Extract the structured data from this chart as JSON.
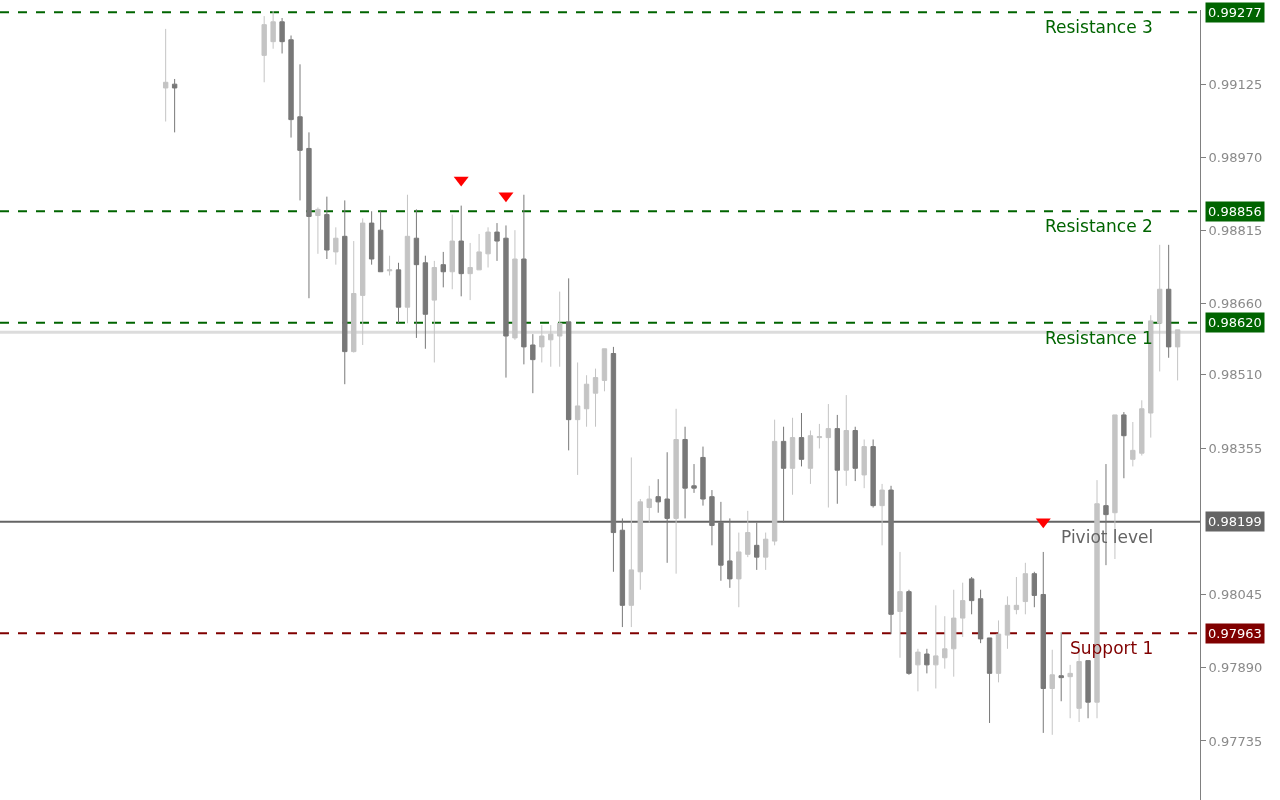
{
  "chart_data": {
    "type": "candlestick",
    "categories": [
      null,
      null,
      null,
      null,
      null,
      null,
      null,
      null,
      null,
      null,
      null,
      null,
      null,
      null,
      null,
      null,
      null,
      null,
      null,
      null,
      null,
      null,
      null,
      null,
      null,
      null,
      null,
      null,
      null,
      null,
      null,
      null,
      null,
      null,
      null,
      null,
      null,
      null,
      null,
      null,
      null,
      null,
      null,
      null,
      null,
      null,
      null,
      null,
      null,
      null,
      null,
      null,
      null,
      null,
      null,
      null,
      null,
      null,
      null,
      null,
      null,
      null,
      null,
      null,
      null,
      null,
      null,
      null,
      null,
      null,
      null,
      null,
      null,
      null,
      null,
      null,
      null,
      null,
      null,
      null,
      null,
      null,
      null,
      null,
      null,
      null,
      null,
      null,
      null,
      null,
      null,
      null,
      null,
      null,
      null,
      null,
      null,
      null,
      null,
      null,
      null,
      null,
      null,
      null,
      null,
      null,
      null,
      null,
      null,
      null,
      null,
      null,
      null,
      null,
      null,
      null,
      null,
      null,
      null,
      null,
      null,
      null,
      null,
      null,
      null,
      null,
      null,
      null,
      null,
      null,
      null,
      null,
      null,
      null
    ],
    "ohlc": [
      null,
      null,
      null,
      null,
      null,
      null,
      null,
      null,
      null,
      null,
      null,
      null,
      null,
      null,
      null,
      null,
      null,
      null,
      [
        0.99117,
        0.99242,
        0.99046,
        0.99129
      ],
      [
        0.99125,
        0.99136,
        0.99023,
        0.99117
      ],
      null,
      null,
      null,
      null,
      null,
      null,
      null,
      null,
      null,
      [
        0.99186,
        0.99269,
        0.99129,
        0.99251
      ],
      [
        0.99215,
        0.9928,
        0.992,
        0.99257
      ],
      [
        0.99257,
        0.99265,
        0.9919,
        0.99215
      ],
      [
        0.99219,
        0.99228,
        0.99012,
        0.9905
      ],
      [
        0.99056,
        0.99167,
        0.98879,
        0.98985
      ],
      [
        0.98989,
        0.99023,
        0.98672,
        0.98845
      ],
      [
        0.98847,
        0.98864,
        0.98766,
        0.9886
      ],
      [
        0.98849,
        0.98887,
        0.98755,
        0.98774
      ],
      [
        0.9877,
        0.98822,
        0.98743,
        0.98799
      ],
      [
        0.98803,
        0.98879,
        0.9849,
        0.98559
      ],
      [
        0.98559,
        0.98793,
        0.98557,
        0.98682
      ],
      [
        0.98678,
        0.98841,
        0.98573,
        0.98831
      ],
      [
        0.98831,
        0.98856,
        0.98743,
        0.98755
      ],
      [
        0.98816,
        0.98856,
        0.98728,
        0.98728
      ],
      [
        0.9873,
        0.98762,
        0.9872,
        0.98732
      ],
      [
        0.98732,
        0.98747,
        0.98619,
        0.98653
      ],
      [
        0.98653,
        0.98891,
        0.98619,
        0.98803
      ],
      [
        0.98799,
        0.9886,
        0.98588,
        0.98743
      ],
      [
        0.98747,
        0.98762,
        0.98565,
        0.98638
      ],
      [
        0.98668,
        0.98751,
        0.98536,
        0.98737
      ],
      [
        0.98743,
        0.9877,
        0.98695,
        0.98728
      ],
      [
        0.98728,
        0.98849,
        0.98691,
        0.98793
      ],
      [
        0.98793,
        0.98868,
        0.98676,
        0.98724
      ],
      [
        0.98724,
        0.98789,
        0.98668,
        0.98737
      ],
      [
        0.98732,
        0.98808,
        0.98732,
        0.9877
      ],
      [
        0.98766,
        0.98822,
        0.98737,
        0.98812
      ],
      [
        0.98812,
        0.98831,
        0.98751,
        0.98793
      ],
      [
        0.98799,
        0.98826,
        0.98504,
        0.98592
      ],
      [
        0.98588,
        0.98816,
        0.98584,
        0.98755
      ],
      [
        0.98755,
        0.98891,
        0.98532,
        0.98569
      ],
      [
        0.98573,
        0.98596,
        0.98471,
        0.98542
      ],
      [
        0.98569,
        0.98615,
        0.98536,
        0.98592
      ],
      [
        0.98584,
        0.98615,
        0.98527,
        0.98596
      ],
      [
        0.98592,
        0.98686,
        0.98527,
        0.98619
      ],
      [
        0.98622,
        0.98714,
        0.9835,
        0.98415
      ],
      [
        0.98415,
        0.98536,
        0.98298,
        0.98444
      ],
      [
        0.98438,
        0.98509,
        0.984,
        0.9849
      ],
      [
        0.98471,
        0.98523,
        0.984,
        0.98504
      ],
      [
        0.98498,
        0.98565,
        0.98475,
        0.98565
      ],
      [
        0.98555,
        0.98569,
        0.98093,
        0.98176
      ],
      [
        0.98181,
        0.98206,
        0.97976,
        0.98022
      ],
      [
        0.98022,
        0.98335,
        0.97976,
        0.98097
      ],
      [
        0.98093,
        0.98247,
        0.98055,
        0.98241
      ],
      [
        0.98229,
        0.98275,
        0.98197,
        0.98247
      ],
      [
        0.98252,
        0.98289,
        0.98218,
        0.98241
      ],
      [
        0.98247,
        0.98346,
        0.98112,
        0.98206
      ],
      [
        0.98206,
        0.98438,
        0.98089,
        0.98373
      ],
      [
        0.98373,
        0.984,
        0.98206,
        0.9827
      ],
      [
        0.98275,
        0.98321,
        0.9826,
        0.9827
      ],
      [
        0.98335,
        0.98358,
        0.98233,
        0.98247
      ],
      [
        0.98252,
        0.98266,
        0.98149,
        0.98191
      ],
      [
        0.98197,
        0.98241,
        0.98074,
        0.98107
      ],
      [
        0.98116,
        0.98206,
        0.98059,
        0.98078
      ],
      [
        0.98078,
        0.98176,
        0.98018,
        0.98135
      ],
      [
        0.9813,
        0.98222,
        0.98124,
        0.98176
      ],
      [
        0.98149,
        0.98197,
        0.98097,
        0.98124
      ],
      [
        0.98124,
        0.98176,
        0.98097,
        0.98162
      ],
      [
        0.98158,
        0.98415,
        0.98149,
        0.98369
      ],
      [
        0.98369,
        0.984,
        0.98197,
        0.98312
      ],
      [
        0.98312,
        0.98419,
        0.98256,
        0.98377
      ],
      [
        0.98377,
        0.98429,
        0.98316,
        0.98331
      ],
      [
        0.98312,
        0.98392,
        0.98279,
        0.98381
      ],
      [
        0.98377,
        0.98406,
        0.98354,
        0.98379
      ],
      [
        0.98377,
        0.98448,
        0.98229,
        0.98396
      ],
      [
        0.98396,
        0.98425,
        0.98237,
        0.98308
      ],
      [
        0.98308,
        0.98467,
        0.98275,
        0.98392
      ],
      [
        0.98392,
        0.984,
        0.98285,
        0.98312
      ],
      [
        0.98298,
        0.98373,
        0.9827,
        0.98358
      ],
      [
        0.98358,
        0.98373,
        0.98229,
        0.98233
      ],
      [
        0.98233,
        0.98279,
        0.98149,
        0.98266
      ],
      [
        0.98266,
        0.98275,
        0.97961,
        0.98003
      ],
      [
        0.98009,
        0.98135,
        0.97911,
        0.98051
      ],
      [
        0.98051,
        0.98055,
        0.97875,
        0.97878
      ],
      [
        0.97896,
        0.9793,
        0.9784,
        0.97923
      ],
      [
        0.97919,
        0.9793,
        0.97878,
        0.97896
      ],
      [
        0.97896,
        0.98022,
        0.97846,
        0.97915
      ],
      [
        0.97911,
        0.97999,
        0.97888,
        0.9793
      ],
      [
        0.9793,
        0.98055,
        0.97871,
        0.97995
      ],
      [
        0.97995,
        0.9807,
        0.97955,
        0.98032
      ],
      [
        0.98078,
        0.98082,
        0.98003,
        0.98032
      ],
      [
        0.98036,
        0.98055,
        0.97942,
        0.97951
      ],
      [
        0.97953,
        0.97953,
        0.97773,
        0.97878
      ],
      [
        0.97878,
        0.9799,
        0.97859,
        0.97961
      ],
      [
        0.97959,
        0.98041,
        0.9793,
        0.98022
      ],
      [
        0.98013,
        0.98082,
        0.98003,
        0.98022
      ],
      [
        0.9803,
        0.98112,
        0.98003,
        0.98089
      ],
      [
        0.98089,
        0.98093,
        0.98018,
        0.98043
      ],
      [
        0.98045,
        0.98135,
        0.97752,
        0.97846
      ],
      [
        0.97846,
        0.97928,
        0.97748,
        0.97875
      ],
      [
        0.97873,
        0.97965,
        0.97819,
        0.97869
      ],
      [
        0.97871,
        0.97896,
        0.97783,
        0.97878
      ],
      [
        0.97804,
        0.9794,
        0.97775,
        0.97903
      ],
      [
        0.97905,
        0.97905,
        0.97783,
        0.97817
      ],
      [
        0.97817,
        0.98287,
        0.97783,
        0.98237
      ],
      [
        0.98233,
        0.98321,
        0.98107,
        0.98214
      ],
      [
        0.98218,
        0.98425,
        0.9812,
        0.98425
      ],
      [
        0.98425,
        0.98431,
        0.98291,
        0.98381
      ],
      [
        0.98331,
        0.9841,
        0.98316,
        0.9835
      ],
      [
        0.98344,
        0.98456,
        0.98339,
        0.98438
      ],
      [
        0.98429,
        0.98636,
        0.98377,
        0.98624
      ],
      [
        0.98619,
        0.98785,
        0.98517,
        0.98691
      ],
      [
        0.98691,
        0.98785,
        0.98546,
        0.98569
      ],
      [
        0.98569,
        0.98605,
        0.98498,
        0.98605
      ],
      null,
      null
    ],
    "colors": [
      null,
      null,
      null,
      null,
      null,
      null,
      null,
      null,
      null,
      null,
      null,
      null,
      null,
      null,
      null,
      null,
      null,
      null,
      "#c4c4c4",
      "#787878",
      null,
      null,
      null,
      null,
      null,
      null,
      null,
      null,
      null,
      "#c4c4c4",
      "#c4c4c4",
      "#787878",
      "#787878",
      "#787878",
      "#787878",
      "#c4c4c4",
      "#787878",
      "#c4c4c4",
      "#787878",
      "#c4c4c4",
      "#c4c4c4",
      "#787878",
      "#787878",
      "#c4c4c4",
      "#787878",
      "#c4c4c4",
      "#787878",
      "#787878",
      "#c4c4c4",
      "#787878",
      "#c4c4c4",
      "#787878",
      "#c4c4c4",
      "#c4c4c4",
      "#c4c4c4",
      "#787878",
      "#787878",
      "#c4c4c4",
      "#787878",
      "#787878",
      "#c4c4c4",
      "#c4c4c4",
      "#c4c4c4",
      "#787878",
      "#c4c4c4",
      "#c4c4c4",
      "#c4c4c4",
      "#c4c4c4",
      "#787878",
      "#787878",
      "#c4c4c4",
      "#c4c4c4",
      "#c4c4c4",
      "#787878",
      "#787878",
      "#c4c4c4",
      "#787878",
      "#787878",
      "#787878",
      "#787878",
      "#787878",
      "#787878",
      "#c4c4c4",
      "#c4c4c4",
      "#787878",
      "#c4c4c4",
      "#c4c4c4",
      "#787878",
      "#c4c4c4",
      "#787878",
      "#c4c4c4",
      "#c4c4c4",
      "#c4c4c4",
      "#787878",
      "#c4c4c4",
      "#787878",
      "#c4c4c4",
      "#787878",
      "#c4c4c4",
      "#787878",
      "#c4c4c4",
      "#787878",
      "#c4c4c4",
      "#787878",
      "#c4c4c4",
      "#c4c4c4",
      "#c4c4c4",
      "#c4c4c4",
      "#787878",
      "#787878",
      "#787878",
      "#c4c4c4",
      "#c4c4c4",
      "#c4c4c4",
      "#c4c4c4",
      "#787878",
      "#787878",
      "#c4c4c4",
      "#787878",
      "#c4c4c4",
      "#c4c4c4",
      "#787878",
      "#c4c4c4",
      "#787878",
      "#c4c4c4",
      "#787878",
      "#c4c4c4",
      "#c4c4c4",
      "#c4c4c4",
      "#c4c4c4",
      "#787878",
      "#c4c4c4",
      null,
      null
    ],
    "series": [
      {
        "type": "scatter",
        "color": "#ff0000",
        "marker": "triangle",
        "values": [
          null,
          null,
          null,
          null,
          null,
          null,
          null,
          null,
          null,
          null,
          null,
          null,
          null,
          null,
          null,
          null,
          null,
          null,
          null,
          null,
          null,
          null,
          null,
          null,
          null,
          null,
          null,
          null,
          null,
          null,
          null,
          null,
          null,
          null,
          null,
          null,
          null,
          null,
          null,
          null,
          null,
          null,
          null,
          null,
          null,
          null,
          null,
          null,
          null,
          null,
          null,
          0.98922,
          null,
          null,
          null,
          null,
          0.98889,
          null,
          null,
          null,
          null,
          null,
          null,
          null,
          null,
          null,
          null,
          null,
          null,
          null,
          null,
          null,
          null,
          null,
          null,
          null,
          null,
          null,
          null,
          null,
          null,
          null,
          null,
          null,
          null,
          null,
          null,
          null,
          null,
          null,
          null,
          null,
          null,
          null,
          null,
          null,
          null,
          null,
          null,
          null,
          null,
          null,
          null,
          null,
          null,
          null,
          null,
          null,
          null,
          null,
          null,
          null,
          null,
          null,
          null,
          null,
          0.98199,
          null,
          null,
          null,
          null,
          null,
          null,
          null,
          null,
          null,
          null,
          null,
          null,
          null,
          null,
          null,
          null,
          null
        ]
      }
    ],
    "ylim": [
      0.9761,
      0.99282
    ],
    "yticks": [
      0.99125,
      {
        "value": 0.9897,
        "label": "0.98970"
      },
      0.98815,
      {
        "value": 0.9866,
        "label": "0.98660"
      },
      {
        "value": 0.9851,
        "label": "0.98510"
      },
      0.98355,
      0.98045,
      {
        "value": 0.9789,
        "label": "0.97890"
      },
      0.97735
    ],
    "annotations": [
      "0.99277",
      "0.98856",
      "0.98620",
      "0.98199",
      "0.97963"
    ],
    "tick_labels": "y",
    "ref_lines": [
      {
        "axis": "y",
        "value": 0.986,
        "label": null,
        "color": "#dcdcdc",
        "line_style": "solid"
      },
      {
        "axis": "y",
        "value": 0.99277,
        "label": "Resistance 3",
        "color": "#006400",
        "line_style": "dashed"
      },
      {
        "axis": "y",
        "value": 0.98856,
        "label": "Resistance 2",
        "color": "#006400",
        "line_style": "dashed"
      },
      {
        "axis": "y",
        "value": 0.9862,
        "label": "Resistance 1",
        "color": "#006400",
        "line_style": "dashed"
      },
      {
        "axis": "y",
        "value": 0.98199,
        "label": "Piviot level",
        "color": "#646464",
        "line_style": "solid"
      },
      {
        "axis": "y",
        "value": 0.97963,
        "label": "Support 1",
        "color": "#800000",
        "line_style": "dashed"
      }
    ]
  }
}
